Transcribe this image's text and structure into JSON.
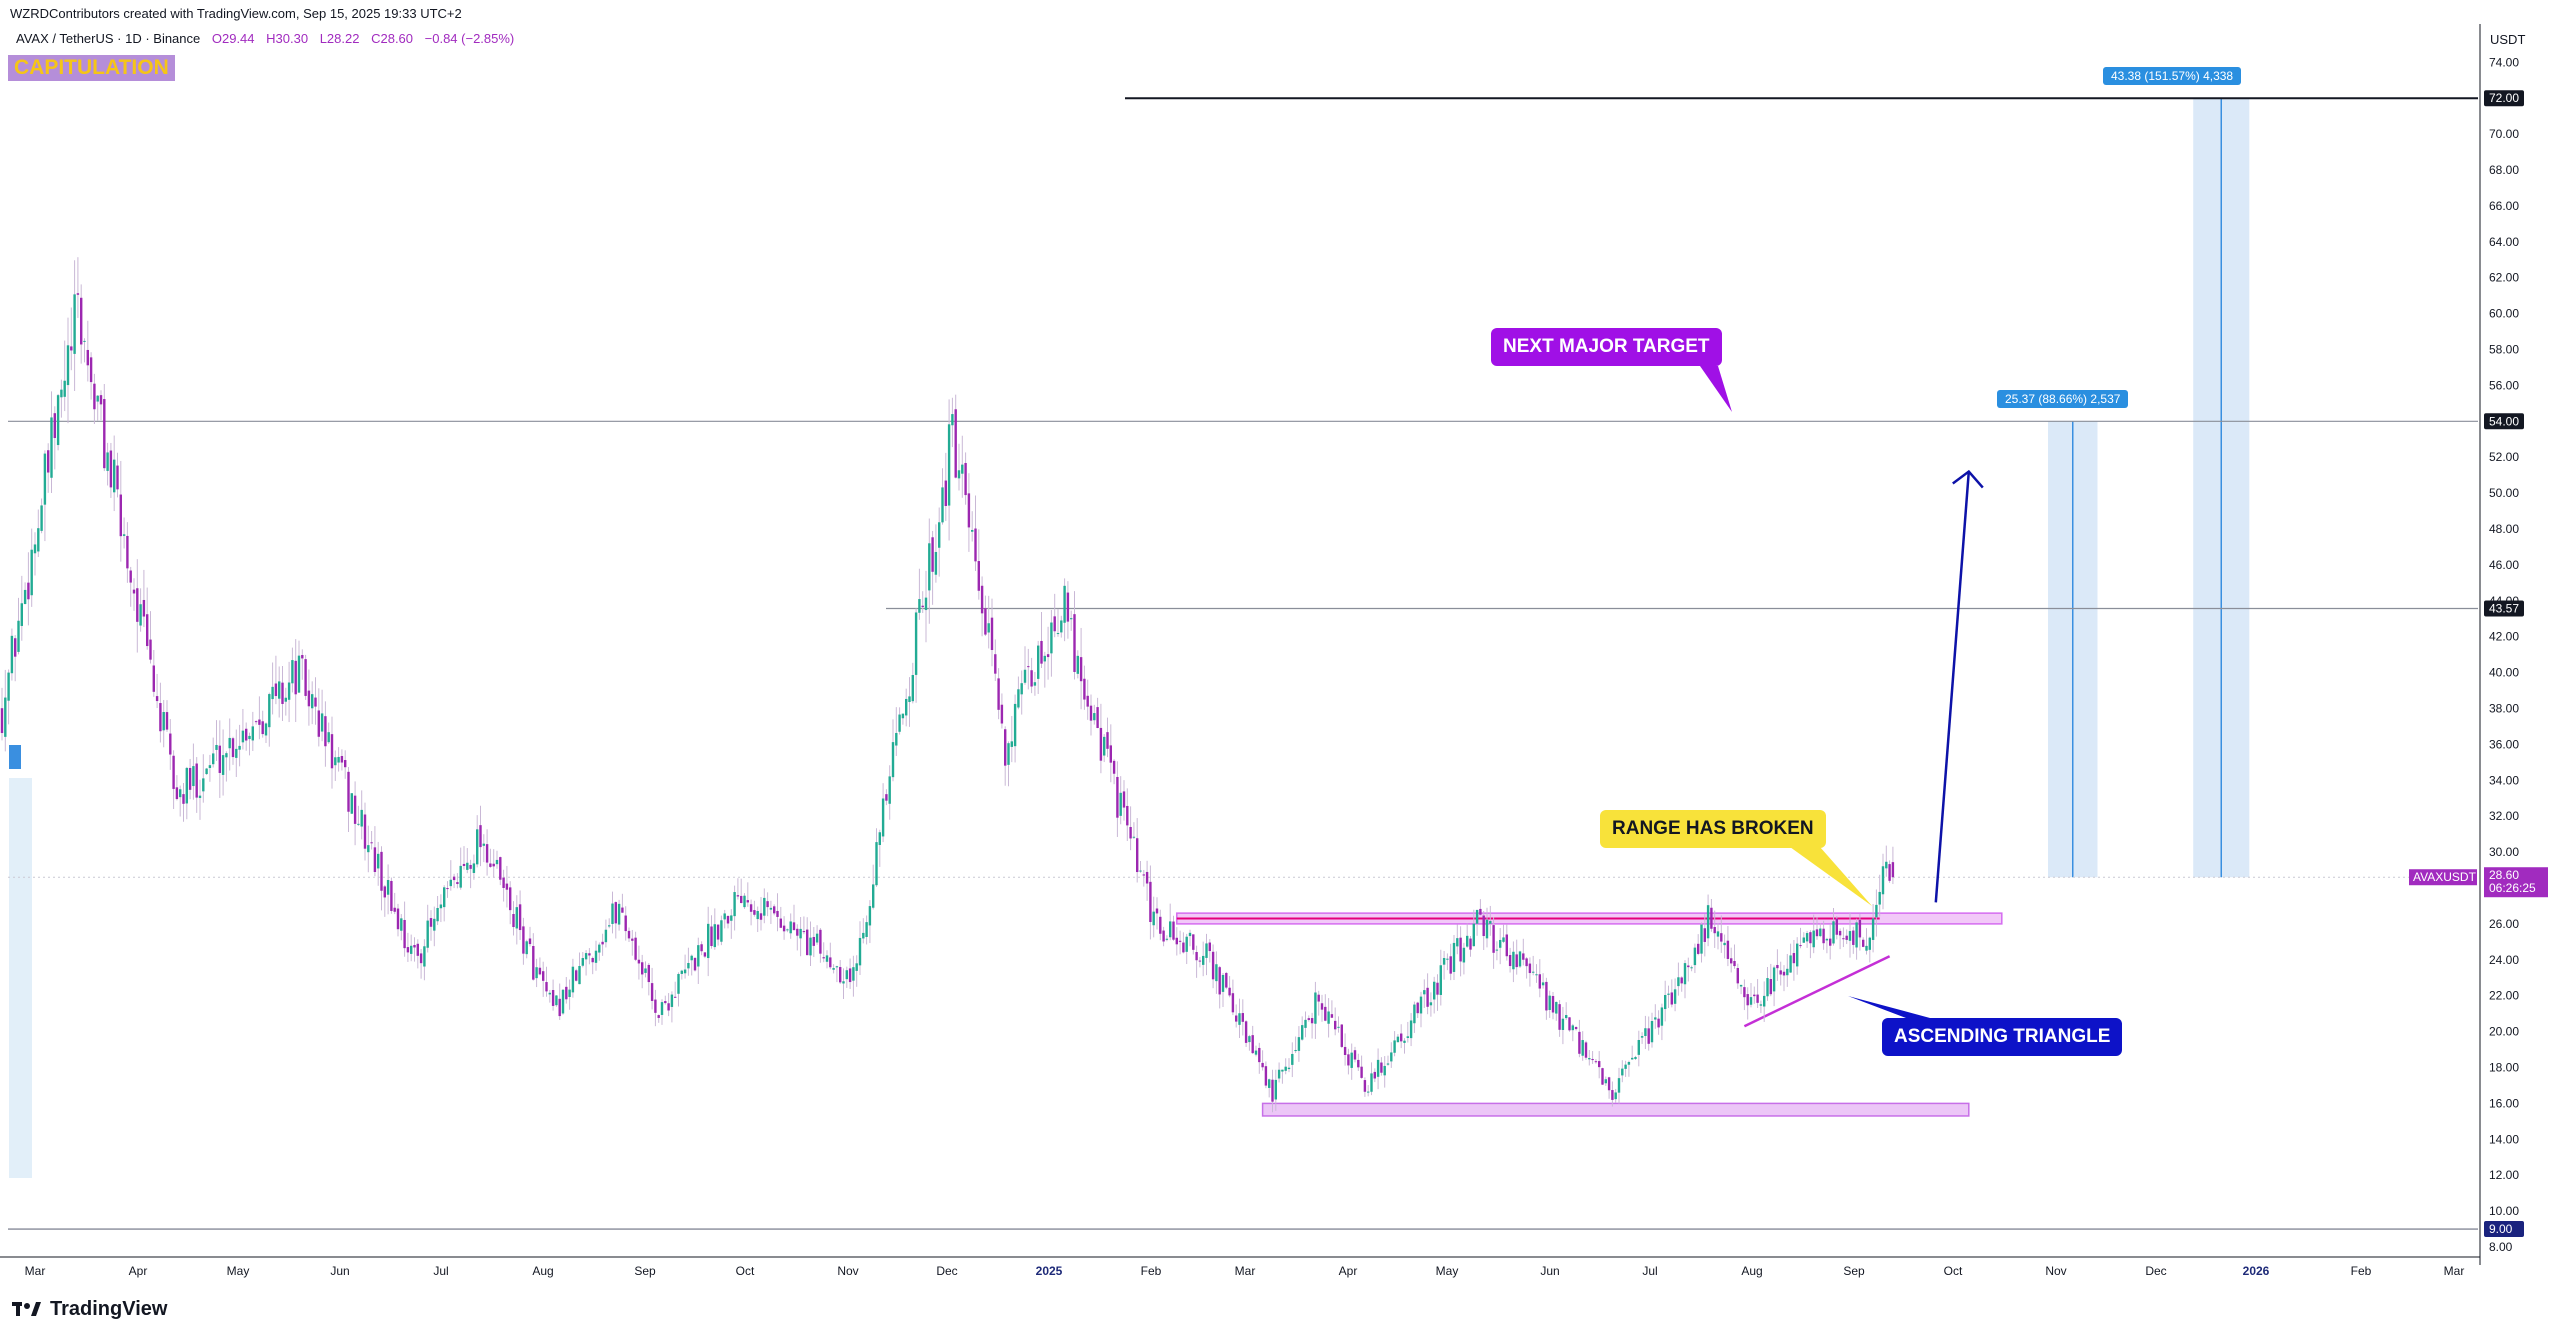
{
  "header": {
    "credit": "WZRDContributors created with TradingView.com, Sep 15, 2025 19:33 UTC+2",
    "symbol": "AVAX / TetherUS · 1D · Binance",
    "open": "O29.44",
    "high": "H30.30",
    "low": "L28.22",
    "close": "C28.60",
    "change": "−0.84 (−2.85%)",
    "badge": "CAPITULATION"
  },
  "axis": {
    "currency": "USDT"
  },
  "chart_data": {
    "type": "candlestick",
    "pair": "AVAX / TetherUS",
    "interval": "1D",
    "exchange": "Binance",
    "ylim": [
      8,
      75
    ],
    "y_ticks": [
      8,
      10,
      12,
      14,
      16,
      18,
      20,
      22,
      24,
      26,
      28,
      30,
      32,
      34,
      36,
      38,
      40,
      42,
      44,
      46,
      48,
      50,
      52,
      54,
      56,
      58,
      60,
      62,
      64,
      66,
      68,
      70,
      72,
      74
    ],
    "x_ticks": [
      "Mar",
      "Apr",
      "May",
      "Jun",
      "Jul",
      "Aug",
      "Sep",
      "Oct",
      "Nov",
      "Dec",
      "2025",
      "Feb",
      "Mar",
      "Apr",
      "May",
      "Jun",
      "Jul",
      "Aug",
      "Sep",
      "Oct",
      "Nov",
      "Dec",
      "2026",
      "Feb",
      "Mar"
    ],
    "key_levels": [
      {
        "label": "72.00",
        "value": 72
      },
      {
        "label": "54.00",
        "value": 54
      },
      {
        "label": "43.57",
        "value": 43.57
      },
      {
        "label": "9.00",
        "value": 9
      }
    ],
    "last_price": {
      "label": "AVAXUSDT",
      "value": "28.60",
      "countdown": "06:26:25"
    },
    "measurements": [
      {
        "text": "43.38 (151.57%) 4,338",
        "from": 28.6,
        "to": 72
      },
      {
        "text": "25.37 (88.66%) 2,537",
        "from": 28.6,
        "to": 54
      }
    ],
    "ranges": [
      {
        "name": "range-top",
        "low": 26,
        "high": 26.6
      },
      {
        "name": "range-bottom",
        "low": 15.3,
        "high": 16
      }
    ],
    "annotations": [
      {
        "text": "NEXT MAJOR TARGET"
      },
      {
        "text": "RANGE HAS BROKEN"
      },
      {
        "text": "ASCENDING TRIANGLE"
      }
    ],
    "anchors": [
      {
        "date": "2024-02-20",
        "price": 38
      },
      {
        "date": "2024-03-14",
        "price": 60
      },
      {
        "date": "2024-04-13",
        "price": 33
      },
      {
        "date": "2024-05-20",
        "price": 40
      },
      {
        "date": "2024-06-24",
        "price": 24
      },
      {
        "date": "2024-07-14",
        "price": 31
      },
      {
        "date": "2024-08-05",
        "price": 21
      },
      {
        "date": "2024-08-25",
        "price": 27
      },
      {
        "date": "2024-09-06",
        "price": 21
      },
      {
        "date": "2024-10-01",
        "price": 28
      },
      {
        "date": "2024-11-04",
        "price": 23
      },
      {
        "date": "2024-12-04",
        "price": 53
      },
      {
        "date": "2024-12-20",
        "price": 36
      },
      {
        "date": "2025-01-06",
        "price": 44
      },
      {
        "date": "2025-02-03",
        "price": 26
      },
      {
        "date": "2025-02-20",
        "price": 24
      },
      {
        "date": "2025-03-11",
        "price": 16.5
      },
      {
        "date": "2025-03-25",
        "price": 22
      },
      {
        "date": "2025-04-08",
        "price": 16.8
      },
      {
        "date": "2025-05-12",
        "price": 26
      },
      {
        "date": "2025-05-25",
        "price": 24
      },
      {
        "date": "2025-06-22",
        "price": 16.5
      },
      {
        "date": "2025-07-10",
        "price": 22
      },
      {
        "date": "2025-07-22",
        "price": 26.5
      },
      {
        "date": "2025-08-02",
        "price": 21
      },
      {
        "date": "2025-08-22",
        "price": 25.8
      },
      {
        "date": "2025-09-08",
        "price": 25
      },
      {
        "date": "2025-09-13",
        "price": 30.2
      },
      {
        "date": "2025-09-15",
        "price": 28.6
      }
    ],
    "colors": {
      "up": "#22ab94",
      "down": "#9c27b0",
      "accent": "#a010e6",
      "measure": "#2a8fe0"
    },
    "grid": false
  }
}
